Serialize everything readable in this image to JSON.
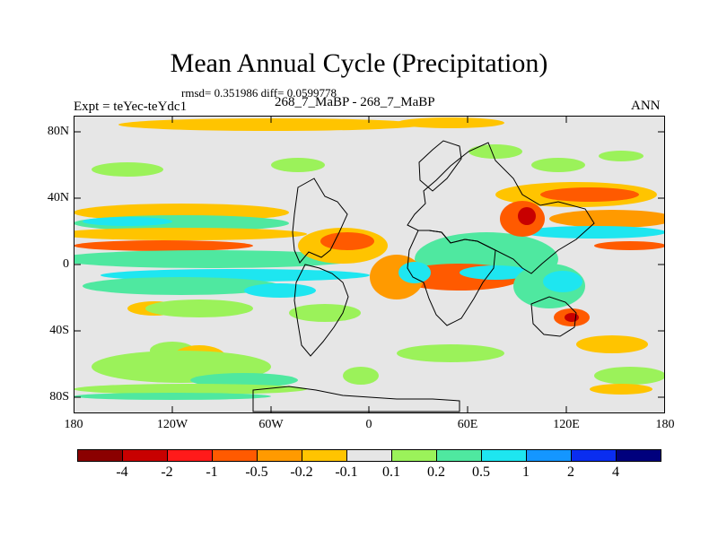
{
  "title": "Mean Annual Cycle (Precipitation)",
  "stats": "rmsd= 0.351986 diff= 0.0599778",
  "experiment": "Expt = teYec-teYdc1",
  "comparison": "268_7_MaBP - 268_7_MaBP",
  "season": "ANN",
  "axes": {
    "y_ticks": [
      "80N",
      "40N",
      "0",
      "40S",
      "80S"
    ],
    "x_ticks": [
      "180",
      "120W",
      "60W",
      "0",
      "60E",
      "120E",
      "180"
    ]
  },
  "colorbar": {
    "labels": [
      "-4",
      "-2",
      "-1",
      "-0.5",
      "-0.2",
      "-0.1",
      "0.1",
      "0.2",
      "0.5",
      "1",
      "2",
      "4"
    ],
    "colors": [
      "#8b0000",
      "#c80000",
      "#ff1a1a",
      "#ff5a00",
      "#ff9a00",
      "#ffc400",
      "#e6e6e6",
      "#9bf25a",
      "#4fe8a0",
      "#1ee6f0",
      "#1496ff",
      "#0a2df0",
      "#00007d"
    ]
  },
  "palette": {
    "ocean": "#e6e6e6",
    "outline": "#000000"
  }
}
